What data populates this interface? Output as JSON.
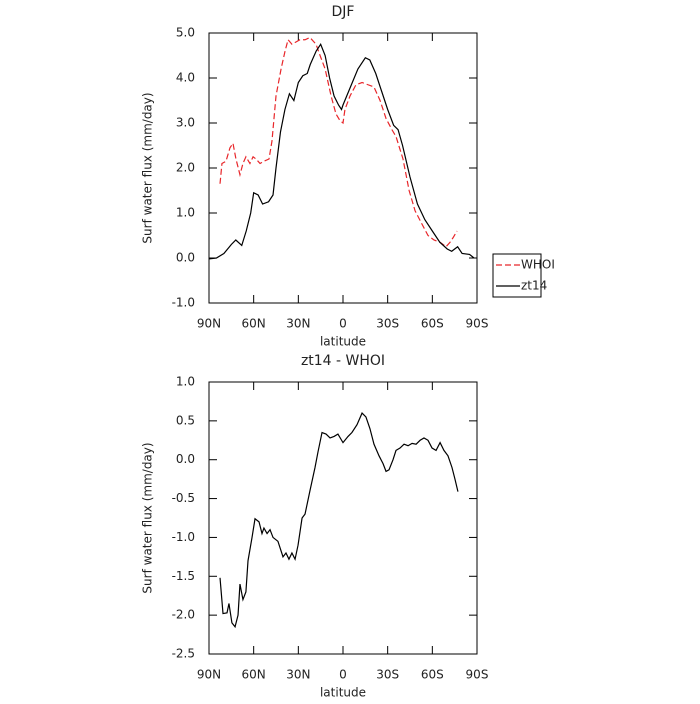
{
  "chart_data": [
    {
      "type": "line",
      "title": "DJF",
      "xlabel": "latitude",
      "ylabel": "Surf water flux (mm/day)",
      "xlim": [
        90,
        -90
      ],
      "ylim": [
        -1,
        5
      ],
      "xticks": [
        {
          "value": 90,
          "label": "90N"
        },
        {
          "value": 60,
          "label": "60N"
        },
        {
          "value": 30,
          "label": "30N"
        },
        0,
        {
          "value": -30,
          "label": "30S"
        },
        {
          "value": -60,
          "label": "60S"
        },
        {
          "value": -90,
          "label": "90S"
        }
      ],
      "yticks": [
        {
          "value": -1,
          "label": "-1.0"
        },
        {
          "value": 0,
          "label": "0.0"
        },
        {
          "value": 1,
          "label": "1.0"
        },
        {
          "value": 2,
          "label": "2.0"
        },
        {
          "value": 3,
          "label": "3.0"
        },
        {
          "value": 4,
          "label": "4.0"
        },
        {
          "value": 5,
          "label": "5.0"
        }
      ],
      "legend": "right",
      "series": [
        {
          "name": "WHOI",
          "color": "#e8262a",
          "style": "dashed",
          "x": [
            82.6,
            81.3,
            78.6,
            75.9,
            73.9,
            71.9,
            69.2,
            67.2,
            65.2,
            62.5,
            60.4,
            58.4,
            55.7,
            53.1,
            49.7,
            47.7,
            45.0,
            41.6,
            38.9,
            36.9,
            34.3,
            31.6,
            28.9,
            25.5,
            22.2,
            18.1,
            15.4,
            12.0,
            8.0,
            4.7,
            2.0,
            0,
            -1.3,
            -4.7,
            -8.7,
            -12.8,
            -16.8,
            -20.8,
            -24.9,
            -28.9,
            -32.9,
            -35.6,
            -40.3,
            -44.4,
            -48.4,
            -53.1,
            -57.1,
            -61.1,
            -65.2,
            -69.2,
            -71.9,
            -73.9,
            -76.6
          ],
          "values": [
            1.65,
            2.1,
            2.15,
            2.45,
            2.55,
            2.2,
            1.85,
            2.1,
            2.25,
            2.1,
            2.25,
            2.2,
            2.1,
            2.15,
            2.2,
            2.6,
            3.6,
            4.2,
            4.6,
            4.85,
            4.75,
            4.8,
            4.85,
            4.85,
            4.9,
            4.75,
            4.5,
            4.2,
            3.6,
            3.2,
            3.05,
            3.0,
            3.3,
            3.6,
            3.85,
            3.9,
            3.85,
            3.8,
            3.5,
            3.1,
            2.85,
            2.7,
            2.2,
            1.5,
            1.05,
            0.75,
            0.5,
            0.4,
            0.35,
            0.25,
            0.35,
            0.45,
            0.6
          ]
        },
        {
          "name": "zt14",
          "color": "#000000",
          "style": "solid",
          "x": [
            90,
            85,
            80,
            75,
            72,
            68,
            65,
            62,
            60,
            57,
            54,
            50,
            47,
            45,
            42,
            39,
            36,
            33,
            30,
            27,
            24,
            22,
            18,
            15,
            12,
            9,
            6,
            3,
            1,
            0,
            -5,
            -10,
            -15,
            -18,
            -22,
            -26,
            -30,
            -34,
            -37,
            -40,
            -45,
            -50,
            -55,
            -60,
            -65,
            -70,
            -73,
            -77,
            -80,
            -85,
            -88
          ],
          "values": [
            -0.02,
            0.0,
            0.1,
            0.3,
            0.4,
            0.28,
            0.6,
            1.0,
            1.45,
            1.4,
            1.2,
            1.25,
            1.4,
            2.0,
            2.8,
            3.3,
            3.65,
            3.5,
            3.9,
            4.05,
            4.1,
            4.3,
            4.6,
            4.75,
            4.5,
            4.0,
            3.6,
            3.4,
            3.3,
            3.4,
            3.8,
            4.2,
            4.45,
            4.4,
            4.1,
            3.7,
            3.3,
            2.95,
            2.85,
            2.5,
            1.8,
            1.2,
            0.85,
            0.6,
            0.35,
            0.2,
            0.15,
            0.25,
            0.1,
            0.08,
            0.0
          ]
        }
      ]
    },
    {
      "type": "line",
      "title": "zt14 - WHOI",
      "xlabel": "latitude",
      "ylabel": "Surf water flux (mm/day)",
      "xlim": [
        90,
        -90
      ],
      "ylim": [
        -2.5,
        1
      ],
      "xticks": [
        {
          "value": 90,
          "label": "90N"
        },
        {
          "value": 60,
          "label": "60N"
        },
        {
          "value": 30,
          "label": "30N"
        },
        0,
        {
          "value": -30,
          "label": "30S"
        },
        {
          "value": -60,
          "label": "60S"
        },
        {
          "value": -90,
          "label": "90S"
        }
      ],
      "yticks": [
        {
          "value": -2.5,
          "label": "-2.5"
        },
        {
          "value": -2,
          "label": "-2.0"
        },
        {
          "value": -1.5,
          "label": "-1.5"
        },
        {
          "value": -1,
          "label": "-1.0"
        },
        {
          "value": -0.5,
          "label": "-0.5"
        },
        {
          "value": 0,
          "label": "0.0"
        },
        {
          "value": 0.5,
          "label": "0.5"
        },
        {
          "value": 1,
          "label": "1.0"
        }
      ],
      "series": [
        {
          "color": "#000000",
          "style": "solid",
          "x": [
            82.6,
            80.6,
            77.9,
            76.6,
            74.6,
            72.5,
            70.5,
            69.2,
            67.2,
            65.2,
            63.8,
            61.1,
            59.1,
            56.4,
            54.4,
            53.1,
            51.0,
            49.0,
            47.0,
            43.7,
            40.3,
            38.3,
            36.3,
            34.3,
            32.2,
            30.2,
            27.5,
            25.5,
            22.2,
            18.8,
            16.8,
            14.1,
            11.4,
            8.7,
            6.0,
            3.4,
            0,
            -3.4,
            -6.0,
            -9.4,
            -12.8,
            -15.4,
            -18.1,
            -20.8,
            -24.2,
            -26.9,
            -28.9,
            -30.9,
            -33.6,
            -35.6,
            -38.3,
            -41.0,
            -43.7,
            -46.4,
            -49.1,
            -51.8,
            -54.4,
            -57.1,
            -59.8,
            -62.5,
            -65.2,
            -67.8,
            -70.5,
            -73.2,
            -75.2,
            -77.2
          ],
          "values": [
            -1.52,
            -1.98,
            -1.97,
            -1.85,
            -2.1,
            -2.15,
            -2.0,
            -1.6,
            -1.8,
            -1.7,
            -1.3,
            -1.0,
            -0.76,
            -0.8,
            -0.95,
            -0.88,
            -0.95,
            -0.9,
            -1.0,
            -1.05,
            -1.25,
            -1.2,
            -1.28,
            -1.2,
            -1.28,
            -1.1,
            -0.75,
            -0.7,
            -0.4,
            -0.1,
            0.1,
            0.35,
            0.33,
            0.28,
            0.3,
            0.33,
            0.22,
            0.3,
            0.35,
            0.45,
            0.6,
            0.55,
            0.4,
            0.2,
            0.05,
            -0.05,
            -0.15,
            -0.13,
            0.0,
            0.12,
            0.15,
            0.2,
            0.18,
            0.21,
            0.2,
            0.25,
            0.28,
            0.25,
            0.15,
            0.12,
            0.22,
            0.12,
            0.05,
            -0.1,
            -0.25,
            -0.41
          ]
        }
      ]
    }
  ]
}
